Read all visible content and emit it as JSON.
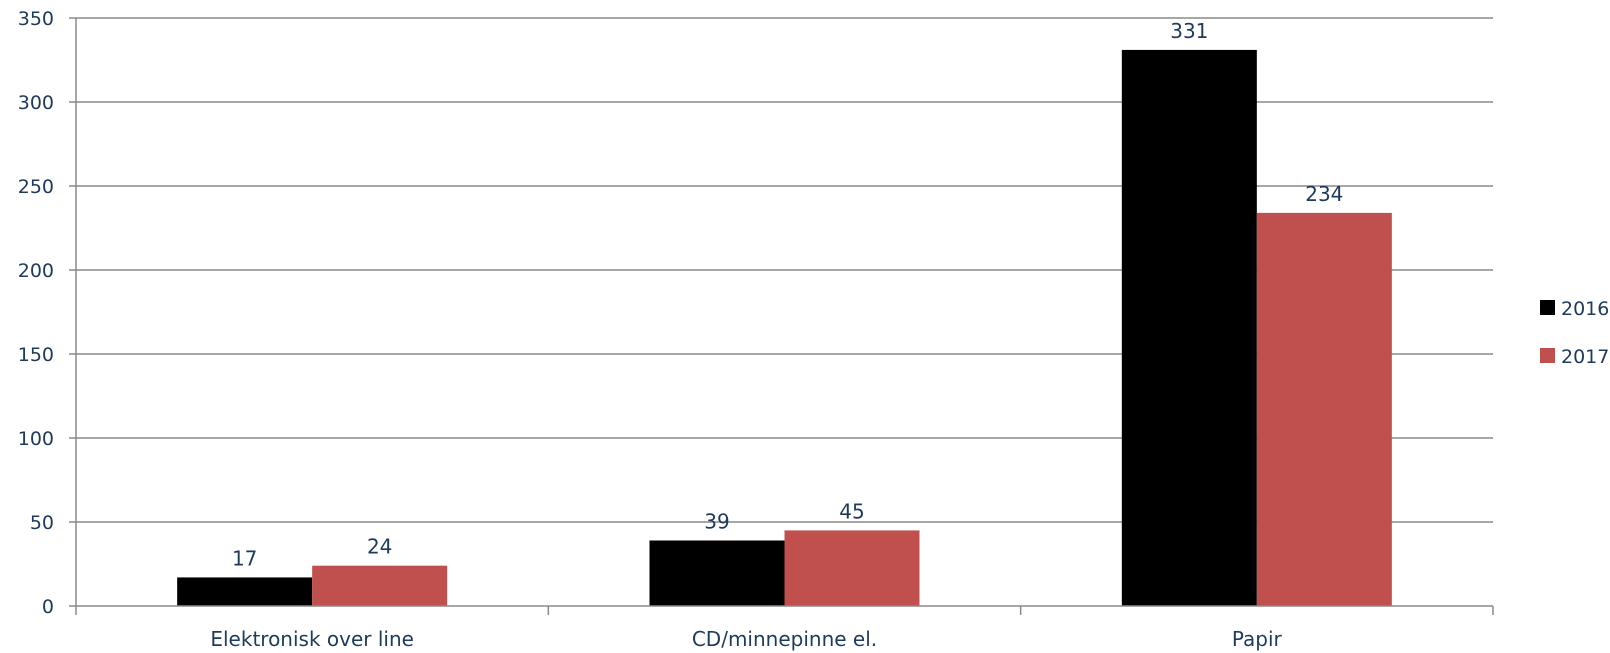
{
  "chart_data": {
    "type": "bar",
    "categories": [
      "Elektronisk over line",
      "CD/minnepinne el.",
      "Papir"
    ],
    "series": [
      {
        "name": "2016",
        "values": [
          17,
          39,
          331
        ],
        "color": "#000000"
      },
      {
        "name": "2017",
        "values": [
          24,
          45,
          234
        ],
        "color": "#c0504d"
      }
    ],
    "ylim": [
      0,
      350
    ],
    "yticks": [
      0,
      50,
      100,
      150,
      200,
      250,
      300,
      350
    ],
    "grid": true,
    "legend_position": "right",
    "data_labels": true
  }
}
